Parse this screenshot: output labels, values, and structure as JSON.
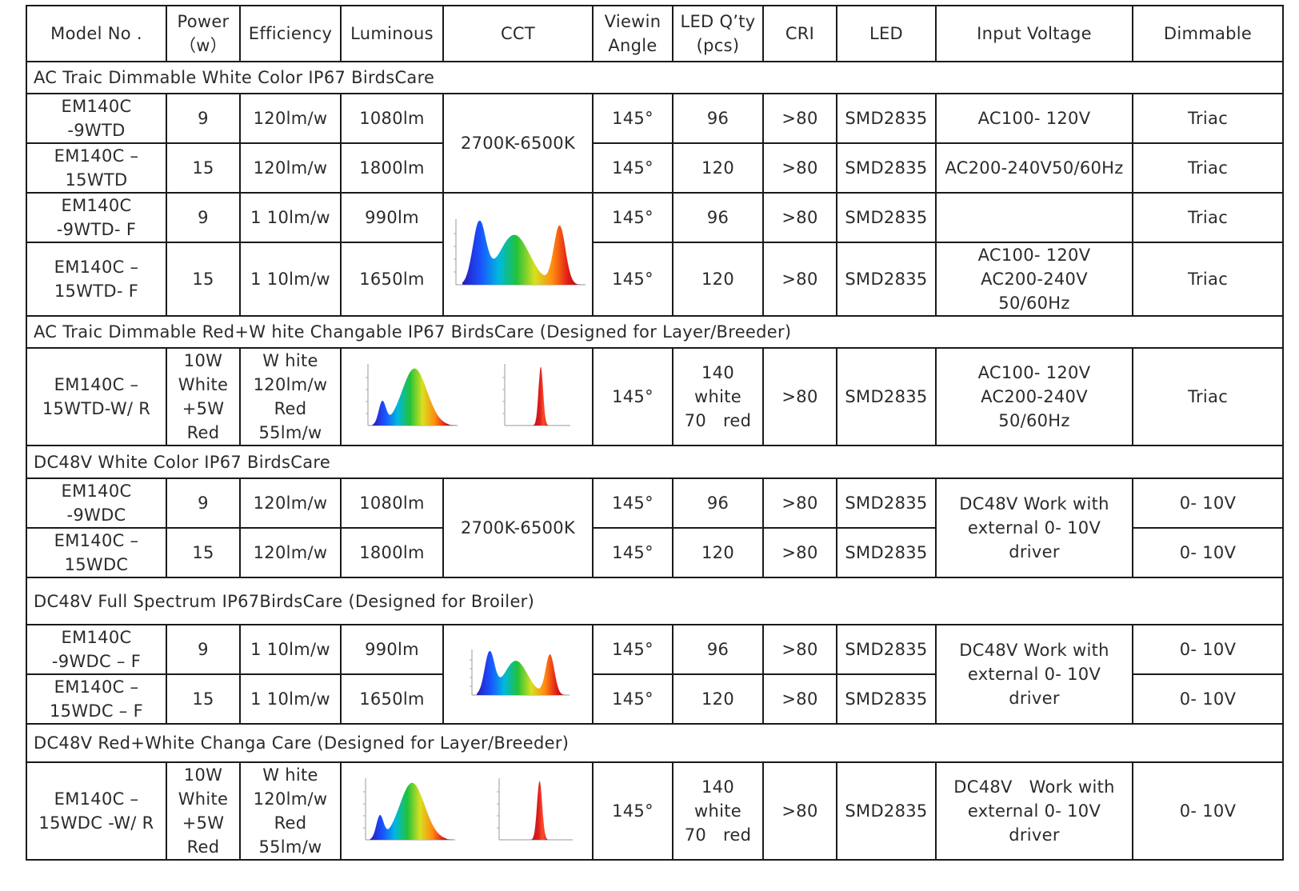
{
  "headers": [
    "Model No .",
    [
      "Power",
      "（w）"
    ],
    "Efficiency",
    "Luminous",
    "CCT",
    [
      "Viewin",
      "Angle"
    ],
    [
      "LED Q’ty",
      "(pcs)"
    ],
    "CRI",
    "LED",
    "Input Voltage",
    "Dimmable"
  ],
  "sections": [
    "AC Traic Dimmable White Color IP67 BirdsCare",
    "AC Traic Dimmable Red+W hite Changable IP67 BirdsCare (Designed for Layer/Breeder)",
    "DC48V White Color IP67 BirdsCare",
    "DC48V Full Spectrum IP67BirdsCare (Designed for Broiler)",
    "DC48V Red+White Changa Care (Designed for Layer/Breeder)"
  ],
  "rows": {
    "ac_white": [
      {
        "model": [
          "EM140C",
          "-9WTD"
        ],
        "power": "9",
        "efficiency": "120lm/w",
        "luminous": "1080lm",
        "angle": "145°",
        "qty": "96",
        "cri": ">80",
        "led": "SMD2835",
        "voltage": "AC100- 120V",
        "dimmable": "Triac"
      },
      {
        "model": [
          "EM140C –",
          "15WTD"
        ],
        "power": "15",
        "efficiency": "120lm/w",
        "luminous": "1800lm",
        "angle": "145°",
        "qty": "120",
        "cri": ">80",
        "led": "SMD2835",
        "voltage": "AC200-240V50/60Hz",
        "dimmable": "Triac"
      },
      {
        "model": [
          "EM140C",
          "-9WTD- F"
        ],
        "power": "9",
        "efficiency": "1 10lm/w",
        "luminous": "990lm",
        "angle": "145°",
        "qty": "96",
        "cri": ">80",
        "led": "SMD2835",
        "voltage": "",
        "dimmable": "Triac"
      },
      {
        "model": [
          "EM140C –",
          "15WTD- F"
        ],
        "power": "15",
        "efficiency": "1 10lm/w",
        "luminous": "1650lm",
        "angle": "145°",
        "qty": "120",
        "cri": ">80",
        "led": "SMD2835",
        "voltage": [
          "AC100- 120V",
          "AC200-240V",
          "50/60Hz"
        ],
        "dimmable": "Triac"
      }
    ],
    "ac_redwhite": {
      "model": [
        "EM140C –",
        "15WTD-W/ R"
      ],
      "power": [
        "10W",
        "White",
        "+5W",
        "Red"
      ],
      "efficiency": [
        "W hite",
        "120lm/w",
        "Red",
        "55lm/w"
      ],
      "angle": "145°",
      "qty": [
        "140",
        "white",
        "70   red"
      ],
      "cri": ">80",
      "led": "SMD2835",
      "voltage": [
        "AC100- 120V",
        "AC200-240V",
        "50/60Hz"
      ],
      "dimmable": "Triac"
    },
    "dc_white": [
      {
        "model": [
          "EM140C",
          "-9WDC"
        ],
        "power": "9",
        "efficiency": "120lm/w",
        "luminous": "1080lm",
        "angle": "145°",
        "qty": "96",
        "cri": ">80",
        "led": "SMD2835",
        "dimmable": "0- 10V"
      },
      {
        "model": [
          "EM140C –",
          "15WDC"
        ],
        "power": "15",
        "efficiency": "120lm/w",
        "luminous": "1800lm",
        "angle": "145°",
        "qty": "120",
        "cri": ">80",
        "led": "SMD2835",
        "dimmable": "0- 10V"
      }
    ],
    "dc_white_voltage": [
      "DC48V Work with",
      "external 0- 10V",
      "driver"
    ],
    "dc_full": [
      {
        "model": [
          "EM140C",
          "-9WDC – F"
        ],
        "power": "9",
        "efficiency": "1 10lm/w",
        "luminous": "990lm",
        "angle": "145°",
        "qty": "96",
        "cri": ">80",
        "led": "SMD2835",
        "dimmable": "0- 10V"
      },
      {
        "model": [
          "EM140C –",
          "15WDC – F"
        ],
        "power": "15",
        "efficiency": "1 10lm/w",
        "luminous": "1650lm",
        "angle": "145°",
        "qty": "120",
        "cri": ">80",
        "led": "SMD2835",
        "dimmable": "0- 10V"
      }
    ],
    "dc_full_voltage": [
      "DC48V Work with",
      "external 0- 10V",
      "driver"
    ],
    "dc_redwhite": {
      "model": [
        "EM140C –",
        "15WDC -W/ R"
      ],
      "power": [
        "10W",
        "White",
        "+5W",
        "Red"
      ],
      "efficiency": [
        "W hite",
        "120lm/w",
        "Red",
        "55lm/w"
      ],
      "angle": "145°",
      "qty": [
        "140",
        "white",
        "70   red"
      ],
      "cri": ">80",
      "led": "SMD2835",
      "voltage": [
        "DC48V   Work with",
        "external 0- 10V",
        "driver"
      ],
      "dimmable": "0- 10V"
    }
  },
  "cct": {
    "ac_white": "2700K-6500K",
    "dc_white": "2700K-6500K"
  },
  "spectrum_images": [
    {
      "name": "full-spectrum-chart-ac",
      "kind": "full"
    },
    {
      "name": "white-spectrum-chart-ac",
      "kind": "white"
    },
    {
      "name": "red-spectrum-chart-ac",
      "kind": "red"
    },
    {
      "name": "full-spectrum-chart-dc",
      "kind": "full"
    },
    {
      "name": "white-spectrum-chart-dc",
      "kind": "white"
    },
    {
      "name": "red-spectrum-chart-dc",
      "kind": "red"
    }
  ]
}
